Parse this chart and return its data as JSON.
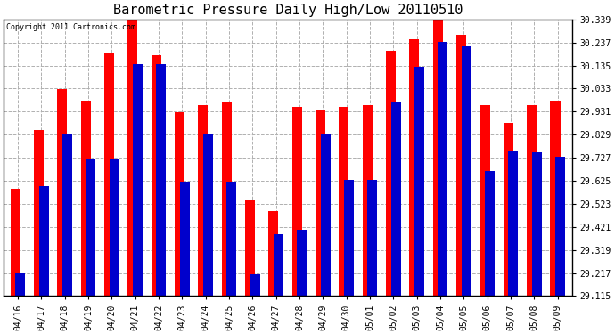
{
  "title": "Barometric Pressure Daily High/Low 20110510",
  "copyright": "Copyright 2011 Cartronics.com",
  "dates": [
    "04/16",
    "04/17",
    "04/18",
    "04/19",
    "04/20",
    "04/21",
    "04/22",
    "04/23",
    "04/24",
    "04/25",
    "04/26",
    "04/27",
    "04/28",
    "04/29",
    "04/30",
    "05/01",
    "05/02",
    "05/03",
    "05/04",
    "05/05",
    "05/06",
    "05/07",
    "05/08",
    "05/09"
  ],
  "highs": [
    29.59,
    29.85,
    30.03,
    29.98,
    30.19,
    30.34,
    30.18,
    29.93,
    29.96,
    29.97,
    29.54,
    29.49,
    29.95,
    29.94,
    29.95,
    29.96,
    30.2,
    30.25,
    30.34,
    30.27,
    29.96,
    29.88,
    29.96,
    29.98
  ],
  "lows": [
    29.22,
    29.6,
    29.83,
    29.72,
    29.72,
    30.14,
    30.14,
    29.62,
    29.83,
    29.62,
    29.21,
    29.39,
    29.41,
    29.83,
    29.63,
    29.63,
    29.97,
    30.13,
    30.24,
    30.22,
    29.67,
    29.76,
    29.75,
    29.73
  ],
  "ymin": 29.115,
  "ymax": 30.339,
  "yticks": [
    29.115,
    29.217,
    29.319,
    29.421,
    29.523,
    29.625,
    29.727,
    29.829,
    29.931,
    30.033,
    30.135,
    30.237,
    30.339
  ],
  "high_color": "#ff0000",
  "low_color": "#0000cc",
  "bg_color": "#ffffff",
  "plot_bg_color": "#ffffff",
  "grid_color": "#b0b0b0",
  "title_fontsize": 11,
  "tick_fontsize": 7,
  "bar_width": 0.42
}
